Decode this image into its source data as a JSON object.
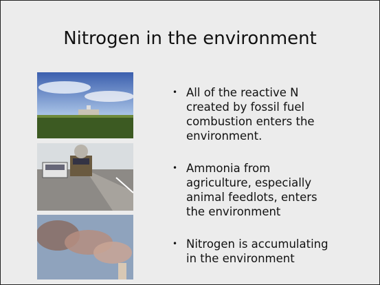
{
  "slide": {
    "title": "Nitrogen in the environment",
    "bullets": [
      [
        "All of the reactive N",
        "created by fossil fuel",
        "combustion enters the",
        "environment."
      ],
      [
        "Ammonia from",
        "agriculture, especially",
        "animal feedlots, enters",
        "the environment"
      ],
      [
        "Nitrogen is accumulating",
        "in the environment"
      ]
    ]
  }
}
